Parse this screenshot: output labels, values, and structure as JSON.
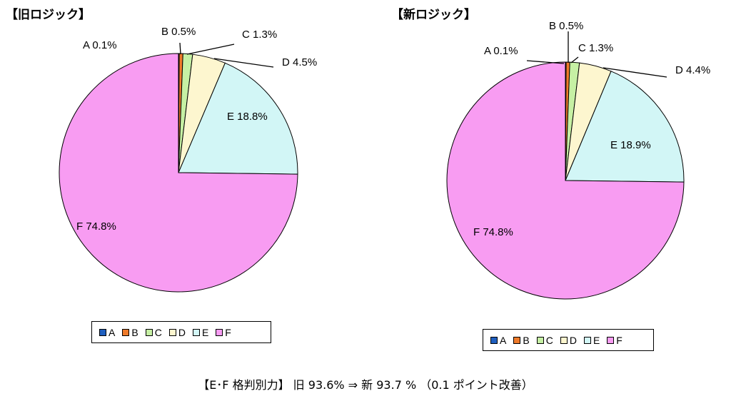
{
  "footer": "【E･F 格判別力】 旧 93.6%  ⇒  新 93.7  %  （0.1 ポイント改善）",
  "colors": {
    "A": "#1f5fbf",
    "B": "#ee7a2a",
    "C": "#c6f0a4",
    "D": "#fdf6cf",
    "E": "#d2f6f6",
    "F": "#f89cf2"
  },
  "chart_data": [
    {
      "type": "pie",
      "title": "【旧ロジック】",
      "categories": [
        "A",
        "B",
        "C",
        "D",
        "E",
        "F"
      ],
      "values": [
        0.1,
        0.5,
        1.3,
        4.5,
        18.8,
        74.8
      ],
      "labels": [
        "A 0.1%",
        "B 0.5%",
        "C 1.3%",
        "D 4.5%",
        "E 18.8%",
        "F 74.8%"
      ],
      "legend": [
        "A",
        "B",
        "C",
        "D",
        "E",
        "F"
      ],
      "legend_position": "bottom"
    },
    {
      "type": "pie",
      "title": "【新ロジック】",
      "categories": [
        "A",
        "B",
        "C",
        "D",
        "E",
        "F"
      ],
      "values": [
        0.1,
        0.5,
        1.3,
        4.4,
        18.9,
        74.8
      ],
      "labels": [
        "A 0.1%",
        "B 0.5%",
        "C 1.3%",
        "D 4.4%",
        "E 18.9%",
        "F 74.8%"
      ],
      "legend": [
        "A",
        "B",
        "C",
        "D",
        "E",
        "F"
      ],
      "legend_position": "bottom"
    }
  ]
}
